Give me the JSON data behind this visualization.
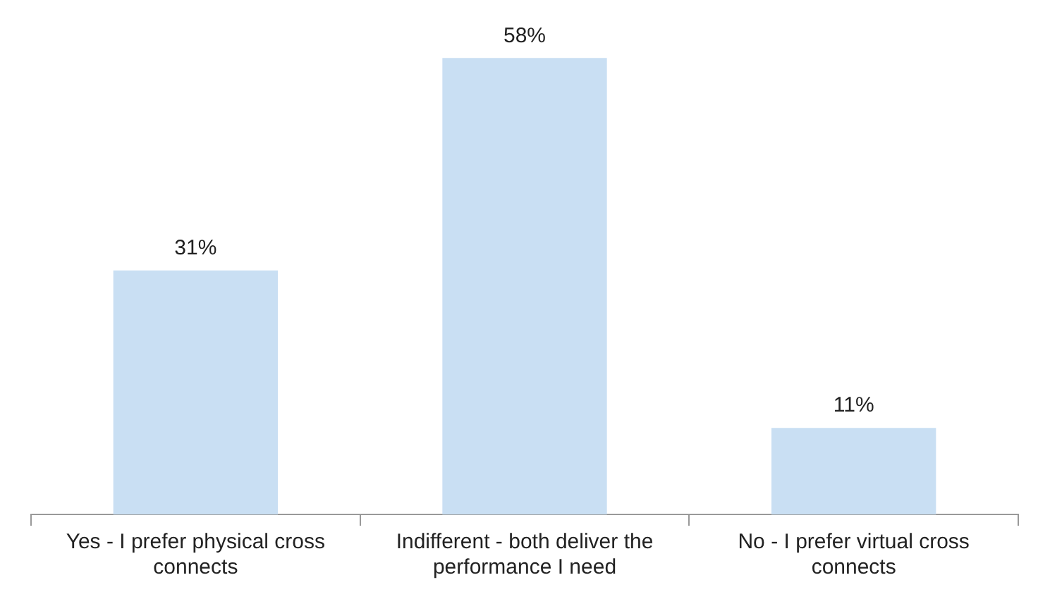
{
  "chart_data": {
    "type": "bar",
    "categories": [
      "Yes - I prefer physical cross connects",
      "Indifferent - both deliver the performance I need",
      "No - I prefer virtual cross connects"
    ],
    "values": [
      31,
      58,
      11
    ],
    "value_labels": [
      "31%",
      "58%",
      "11%"
    ],
    "color": "#c9dff3",
    "grid": false,
    "legend": false
  }
}
